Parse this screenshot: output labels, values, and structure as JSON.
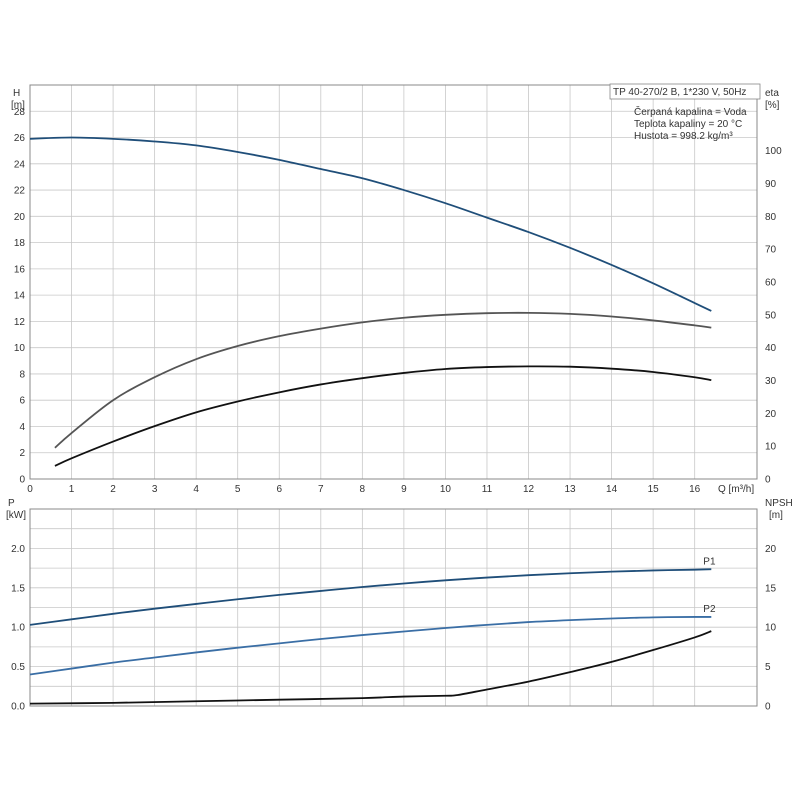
{
  "chart_data": [
    {
      "type": "line",
      "id": "upper",
      "ylabel": "H",
      "yunit": "[m]",
      "y2label": "eta",
      "y2unit": "[%]",
      "xlabel": "Q [m³/h]",
      "xlim": [
        0,
        17.5
      ],
      "ylim": [
        0,
        30
      ],
      "y2lim": [
        0,
        120
      ],
      "xticks": [
        "0",
        "1",
        "2",
        "3",
        "4",
        "5",
        "6",
        "7",
        "8",
        "9",
        "10",
        "11",
        "12",
        "13",
        "14",
        "15",
        "16"
      ],
      "yticks": [
        "0",
        "2",
        "4",
        "6",
        "8",
        "10",
        "12",
        "14",
        "16",
        "18",
        "20",
        "22",
        "24",
        "26",
        "28"
      ],
      "y2ticks": [
        "0",
        "10",
        "20",
        "30",
        "40",
        "50",
        "60",
        "70",
        "80",
        "90",
        "100"
      ],
      "grid": true,
      "info": [
        "TP 40-270/2 B, 1*230 V, 50Hz",
        "Čerpaná kapalina = Voda",
        "Teplota kapaliny = 20 °C",
        "Hustota = 998.2 kg/m³"
      ],
      "series": [
        {
          "axis": "left",
          "color": "#1f4e79",
          "x": [
            0,
            1,
            2,
            3,
            4,
            5,
            6,
            7,
            8,
            9,
            10,
            11,
            12,
            13,
            14,
            15,
            16,
            16.4
          ],
          "y": [
            25.9,
            26.0,
            25.9,
            25.7,
            25.4,
            24.9,
            24.3,
            23.6,
            22.9,
            22.0,
            21.0,
            19.9,
            18.8,
            17.6,
            16.3,
            14.9,
            13.4,
            12.8
          ]
        },
        {
          "axis": "right",
          "color": "#555555",
          "x": [
            0.6,
            1,
            2,
            3,
            4,
            5,
            6,
            7,
            8,
            9,
            10,
            11,
            12,
            13,
            14,
            15,
            16,
            16.4
          ],
          "y": [
            9.5,
            14,
            24,
            31,
            36.5,
            40.5,
            43.5,
            45.8,
            47.7,
            49.1,
            50.0,
            50.5,
            50.6,
            50.3,
            49.5,
            48.3,
            46.8,
            46.1
          ]
        },
        {
          "axis": "right",
          "color": "#111111",
          "x": [
            0.6,
            1,
            2,
            3,
            4,
            5,
            6,
            7,
            8,
            9,
            10,
            11,
            12,
            13,
            14,
            15,
            16,
            16.4
          ],
          "y": [
            4.0,
            6.3,
            11.4,
            16.1,
            20.3,
            23.6,
            26.4,
            28.8,
            30.7,
            32.3,
            33.5,
            34.1,
            34.3,
            34.2,
            33.6,
            32.6,
            31.0,
            30.1
          ]
        }
      ]
    },
    {
      "type": "line",
      "id": "lower",
      "ylabel": "P",
      "yunit": "[kW]",
      "y2label": "NPSH",
      "y2unit": "[m]",
      "xlim": [
        0,
        17.5
      ],
      "ylim": [
        0,
        2.5
      ],
      "y2lim": [
        0,
        25
      ],
      "yticks": [
        "0.0",
        "0.5",
        "1.0",
        "1.5",
        "2.0"
      ],
      "y2ticks": [
        "0",
        "5",
        "10",
        "15",
        "20"
      ],
      "grid": true,
      "series": [
        {
          "name": "P1",
          "axis": "left",
          "color": "#1f4e79",
          "x": [
            0,
            1,
            2,
            3,
            4,
            5,
            6,
            7,
            8,
            9,
            10,
            11,
            12,
            13,
            14,
            15,
            16,
            16.4
          ],
          "y": [
            1.03,
            1.1,
            1.17,
            1.235,
            1.295,
            1.355,
            1.41,
            1.46,
            1.51,
            1.555,
            1.595,
            1.63,
            1.66,
            1.685,
            1.705,
            1.72,
            1.73,
            1.735
          ]
        },
        {
          "name": "P2",
          "axis": "left",
          "color": "#3a6ea5",
          "x": [
            0,
            1,
            2,
            3,
            4,
            5,
            6,
            7,
            8,
            9,
            10,
            11,
            12,
            13,
            14,
            15,
            16,
            16.4
          ],
          "y": [
            0.4,
            0.475,
            0.55,
            0.615,
            0.68,
            0.74,
            0.795,
            0.85,
            0.9,
            0.945,
            0.99,
            1.03,
            1.065,
            1.09,
            1.11,
            1.125,
            1.13,
            1.13
          ]
        },
        {
          "axis": "right",
          "color": "#111111",
          "x": [
            0,
            2,
            4,
            6,
            8,
            9,
            10,
            10.3,
            11,
            12,
            13,
            14,
            15,
            16,
            16.4
          ],
          "y": [
            0.3,
            0.4,
            0.6,
            0.8,
            1.0,
            1.2,
            1.3,
            1.4,
            2.1,
            3.1,
            4.3,
            5.6,
            7.1,
            8.7,
            9.5
          ]
        }
      ]
    }
  ]
}
